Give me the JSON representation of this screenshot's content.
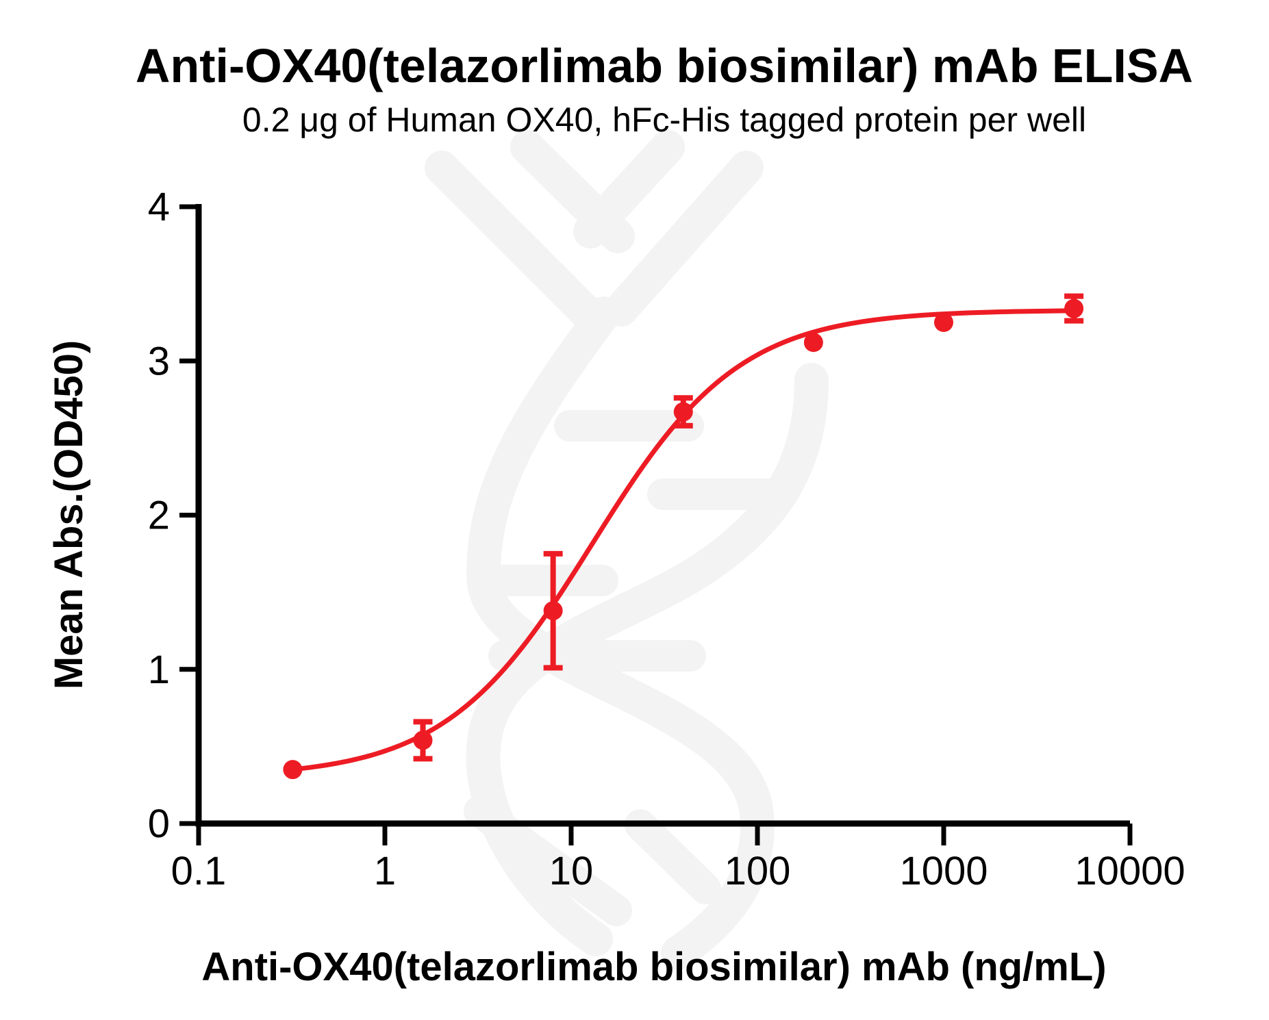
{
  "colors": {
    "curve": "#ED1C24",
    "axis": "#000000",
    "text": "#000000",
    "watermark": "#F3F3F3",
    "background": "#FFFFFF"
  },
  "chart_data": {
    "type": "line",
    "title": "Anti-OX40(telazorlimab biosimilar) mAb ELISA",
    "subtitle": "0.2 μg of Human OX40, hFc-His tagged protein per well",
    "xlabel": "Anti-OX40(telazorlimab biosimilar) mAb (ng/mL)",
    "ylabel": "Mean Abs.(OD450)",
    "x_scale": "log10",
    "xlim": [
      0.1,
      10000
    ],
    "ylim": [
      0,
      4
    ],
    "x_ticks": [
      0.1,
      1,
      10,
      100,
      1000,
      10000
    ],
    "x_tick_labels": [
      "0.1",
      "1",
      "10",
      "100",
      "1000",
      "10000"
    ],
    "y_ticks": [
      0,
      1,
      2,
      3,
      4
    ],
    "y_tick_labels": [
      "0",
      "1",
      "2",
      "3",
      "4"
    ],
    "grid": false,
    "legend": false,
    "watermark": "antibody-dna-helix",
    "series": [
      {
        "name": "Anti-OX40(telazorlimab biosimilar) mAb",
        "color": "#ED1C24",
        "marker": "circle",
        "points": [
          {
            "x": 0.32,
            "y": 0.35,
            "err": 0
          },
          {
            "x": 1.6,
            "y": 0.54,
            "err": 0.12
          },
          {
            "x": 8,
            "y": 1.38,
            "err": 0.37
          },
          {
            "x": 40,
            "y": 2.67,
            "err": 0.09
          },
          {
            "x": 200,
            "y": 3.12,
            "err": 0
          },
          {
            "x": 1000,
            "y": 3.25,
            "err": 0
          },
          {
            "x": 5000,
            "y": 3.34,
            "err": 0.08
          }
        ],
        "fit": {
          "model": "4PL",
          "bottom": 0.3,
          "top": 3.33,
          "ec50": 13,
          "hill": 1.1,
          "x_start": 0.32,
          "x_end": 5000
        }
      }
    ]
  }
}
